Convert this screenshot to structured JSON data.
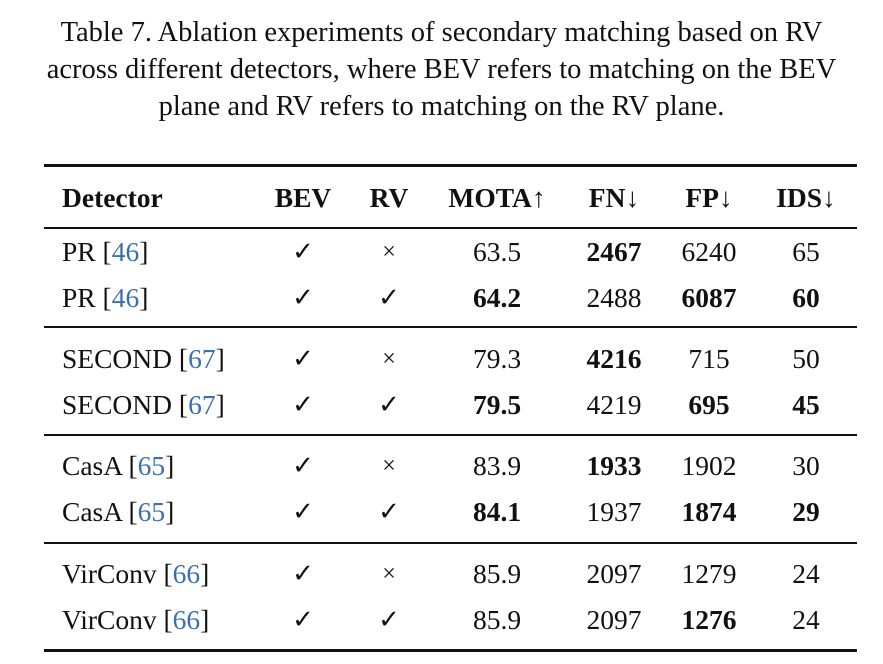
{
  "caption": "Table 7. Ablation experiments of secondary matching based on RV across different detectors, where BEV refers to matching on the BEV plane and RV refers to matching on the RV plane.",
  "header": {
    "detector": "Detector",
    "bev": "BEV",
    "rv": "RV",
    "mota": "MOTA↑",
    "fn": "FN↓",
    "fp": "FP↓",
    "ids": "IDS↓"
  },
  "rows": [
    {
      "name": "PR",
      "ref": "46",
      "bev": "✓",
      "rv": "×",
      "mota": "63.5",
      "fn": "2467",
      "fp": "6240",
      "ids": "65",
      "bold": {
        "mota": false,
        "fn": true,
        "fp": false,
        "ids": false
      }
    },
    {
      "name": "PR",
      "ref": "46",
      "bev": "✓",
      "rv": "✓",
      "mota": "64.2",
      "fn": "2488",
      "fp": "6087",
      "ids": "60",
      "bold": {
        "mota": true,
        "fn": false,
        "fp": true,
        "ids": true
      }
    },
    {
      "name": "SECOND",
      "ref": "67",
      "bev": "✓",
      "rv": "×",
      "mota": "79.3",
      "fn": "4216",
      "fp": "715",
      "ids": "50",
      "bold": {
        "mota": false,
        "fn": true,
        "fp": false,
        "ids": false
      }
    },
    {
      "name": "SECOND",
      "ref": "67",
      "bev": "✓",
      "rv": "✓",
      "mota": "79.5",
      "fn": "4219",
      "fp": "695",
      "ids": "45",
      "bold": {
        "mota": true,
        "fn": false,
        "fp": true,
        "ids": true
      }
    },
    {
      "name": "CasA",
      "ref": "65",
      "bev": "✓",
      "rv": "×",
      "mota": "83.9",
      "fn": "1933",
      "fp": "1902",
      "ids": "30",
      "bold": {
        "mota": false,
        "fn": true,
        "fp": false,
        "ids": false
      }
    },
    {
      "name": "CasA",
      "ref": "65",
      "bev": "✓",
      "rv": "✓",
      "mota": "84.1",
      "fn": "1937",
      "fp": "1874",
      "ids": "29",
      "bold": {
        "mota": true,
        "fn": false,
        "fp": true,
        "ids": true
      }
    },
    {
      "name": "VirConv",
      "ref": "66",
      "bev": "✓",
      "rv": "×",
      "mota": "85.9",
      "fn": "2097",
      "fp": "1279",
      "ids": "24",
      "bold": {
        "mota": false,
        "fn": false,
        "fp": false,
        "ids": false
      }
    },
    {
      "name": "VirConv",
      "ref": "66",
      "bev": "✓",
      "rv": "✓",
      "mota": "85.9",
      "fn": "2097",
      "fp": "1276",
      "ids": "24",
      "bold": {
        "mota": false,
        "fn": false,
        "fp": true,
        "ids": false
      }
    }
  ],
  "colors": {
    "text": "#111111",
    "citation": "#3a6fb0"
  }
}
